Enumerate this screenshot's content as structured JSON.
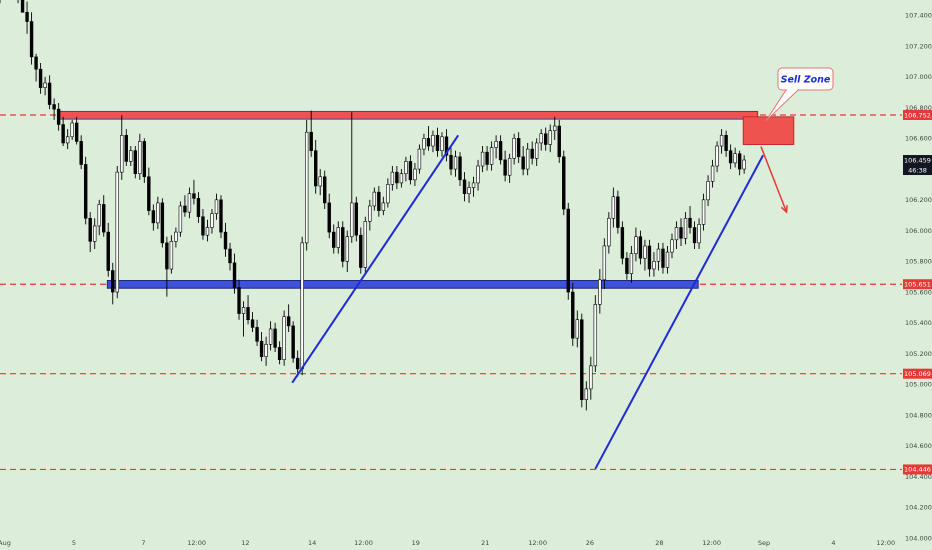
{
  "chart_data": {
    "type": "candlestick",
    "instrument_scale": "price",
    "ylim": [
      104.0,
      107.5
    ],
    "xlim": [
      0,
      100
    ],
    "y_ticks": [
      "107.400",
      "107.200",
      "107.000",
      "106.800",
      "106.600",
      "106.400",
      "106.200",
      "106.000",
      "105.800",
      "105.600",
      "105.400",
      "105.200",
      "105.000",
      "104.800",
      "104.600",
      "104.400",
      "104.200",
      "104.000"
    ],
    "x_ticks": [
      {
        "label": "Aug",
        "x": 0.5
      },
      {
        "label": "5",
        "x": 8.2
      },
      {
        "label": "7",
        "x": 15.9
      },
      {
        "label": "12:00",
        "x": 21.8
      },
      {
        "label": "12",
        "x": 27.2
      },
      {
        "label": "14",
        "x": 34.6
      },
      {
        "label": "12:00",
        "x": 40.3
      },
      {
        "label": "19",
        "x": 46.1
      },
      {
        "label": "21",
        "x": 53.8
      },
      {
        "label": "12:00",
        "x": 59.6
      },
      {
        "label": "26",
        "x": 65.4
      },
      {
        "label": "28",
        "x": 73.1
      },
      {
        "label": "12:00",
        "x": 78.9
      },
      {
        "label": "Sep",
        "x": 84.7
      },
      {
        "label": "4",
        "x": 92.4
      },
      {
        "label": "12:00",
        "x": 98.2
      }
    ],
    "price_tags": [
      {
        "label": "106.752",
        "value": 106.752,
        "style": "red"
      },
      {
        "label": "105.651",
        "value": 105.651,
        "style": "red"
      },
      {
        "label": "105.069",
        "value": 105.069,
        "style": "red"
      },
      {
        "label": "104.446",
        "value": 104.446,
        "style": "red"
      }
    ],
    "current_price": {
      "label": "106.459",
      "value": 106.459,
      "countdown": "46:38"
    },
    "horizontal_lines": [
      {
        "value": 106.752,
        "color": "#e53935",
        "style": "dashed"
      },
      {
        "value": 105.651,
        "color": "#e53935",
        "style": "dashed"
      },
      {
        "value": 105.069,
        "color": "#e53935",
        "style": "dashed"
      },
      {
        "value": 104.446,
        "color": "#e53935",
        "style": "dashed"
      }
    ],
    "zones": [
      {
        "name": "resistance",
        "x0": 6.4,
        "x1": 84.0,
        "y0": 106.725,
        "y1": 106.775,
        "fill": "#ef5350",
        "border": "#3340c9"
      },
      {
        "name": "support",
        "x0": 11.9,
        "x1": 77.4,
        "y0": 105.625,
        "y1": 105.675,
        "fill": "#3f51d8",
        "border": "#1a237e"
      }
    ],
    "trendlines": [
      {
        "x0": 32.4,
        "y0": 105.01,
        "x1": 50.8,
        "y1": 106.62,
        "color": "#1e2bd6"
      },
      {
        "x0": 66.0,
        "y0": 104.45,
        "x1": 84.6,
        "y1": 106.49,
        "color": "#1e2bd6"
      }
    ],
    "sell_zone": {
      "label": "Sell Zone",
      "box": {
        "x0": 82.4,
        "x1": 88.0,
        "y0": 106.56,
        "y1": 106.74
      },
      "arrow_to": {
        "x": 87.2,
        "y": 106.12
      }
    },
    "candles": [
      [
        0.0,
        107.72,
        107.96,
        107.48,
        107.9
      ],
      [
        0.5,
        107.9,
        107.99,
        107.66,
        107.76
      ],
      [
        1.0,
        107.76,
        107.91,
        107.67,
        107.73
      ],
      [
        1.5,
        107.73,
        107.84,
        107.52,
        107.55
      ],
      [
        2.0,
        107.55,
        107.6,
        107.48,
        107.51
      ],
      [
        2.5,
        107.51,
        107.55,
        107.42,
        107.42
      ],
      [
        3.0,
        107.42,
        107.49,
        107.28,
        107.36
      ],
      [
        3.5,
        107.36,
        107.42,
        107.08,
        107.13
      ],
      [
        4.0,
        107.13,
        107.15,
        106.97,
        107.05
      ],
      [
        4.5,
        107.05,
        107.09,
        106.89,
        106.93
      ],
      [
        5.0,
        106.93,
        107.0,
        106.88,
        106.96
      ],
      [
        5.5,
        106.96,
        107.01,
        106.79,
        106.82
      ],
      [
        6.0,
        106.82,
        106.86,
        106.72,
        106.79
      ],
      [
        6.5,
        106.79,
        106.83,
        106.65,
        106.69
      ],
      [
        7.0,
        106.69,
        106.74,
        106.55,
        106.57
      ],
      [
        7.5,
        106.57,
        106.66,
        106.53,
        106.61
      ],
      [
        8.0,
        106.61,
        106.72,
        106.59,
        106.7
      ],
      [
        8.5,
        106.7,
        106.74,
        106.56,
        106.58
      ],
      [
        9.0,
        106.58,
        106.62,
        106.4,
        106.43
      ],
      [
        9.5,
        106.43,
        106.48,
        106.04,
        106.08
      ],
      [
        10.0,
        106.08,
        106.12,
        105.86,
        105.93
      ],
      [
        10.5,
        105.93,
        106.08,
        105.88,
        106.03
      ],
      [
        11.0,
        106.03,
        106.2,
        105.97,
        106.17
      ],
      [
        11.5,
        106.17,
        106.23,
        105.96,
        105.99
      ],
      [
        12.0,
        105.99,
        106.05,
        105.7,
        105.74
      ],
      [
        12.5,
        105.74,
        105.79,
        105.52,
        105.6
      ],
      [
        13.0,
        105.6,
        106.42,
        105.56,
        106.38
      ],
      [
        13.5,
        106.38,
        106.75,
        106.33,
        106.62
      ],
      [
        14.0,
        106.62,
        106.66,
        106.42,
        106.45
      ],
      [
        14.5,
        106.45,
        106.55,
        106.42,
        106.52
      ],
      [
        15.0,
        106.52,
        106.55,
        106.34,
        106.37
      ],
      [
        15.5,
        106.37,
        106.63,
        106.33,
        106.58
      ],
      [
        16.0,
        106.58,
        106.6,
        106.31,
        106.35
      ],
      [
        16.5,
        106.35,
        106.41,
        106.1,
        106.13
      ],
      [
        17.0,
        106.13,
        106.17,
        106.0,
        106.05
      ],
      [
        17.5,
        106.05,
        106.22,
        106.01,
        106.18
      ],
      [
        18.0,
        106.18,
        106.21,
        105.89,
        105.92
      ],
      [
        18.5,
        105.92,
        105.96,
        105.57,
        105.75
      ],
      [
        19.0,
        105.75,
        105.97,
        105.72,
        105.93
      ],
      [
        19.5,
        105.93,
        106.02,
        105.89,
        105.99
      ],
      [
        20.0,
        105.99,
        106.19,
        105.96,
        106.16
      ],
      [
        20.5,
        106.16,
        106.23,
        106.09,
        106.12
      ],
      [
        21.0,
        106.12,
        106.28,
        106.08,
        106.24
      ],
      [
        21.5,
        106.24,
        106.33,
        106.17,
        106.21
      ],
      [
        22.0,
        106.21,
        106.25,
        106.05,
        106.09
      ],
      [
        22.5,
        106.09,
        106.14,
        105.94,
        105.97
      ],
      [
        23.0,
        105.97,
        106.07,
        105.93,
        106.02
      ],
      [
        23.5,
        106.02,
        106.14,
        105.98,
        106.11
      ],
      [
        24.0,
        106.11,
        106.24,
        106.07,
        106.2
      ],
      [
        24.5,
        106.2,
        106.23,
        105.95,
        105.99
      ],
      [
        25.0,
        105.99,
        106.05,
        105.83,
        105.88
      ],
      [
        25.5,
        105.88,
        105.92,
        105.74,
        105.79
      ],
      [
        26.0,
        105.79,
        105.85,
        105.59,
        105.63
      ],
      [
        26.5,
        105.63,
        105.68,
        105.42,
        105.46
      ],
      [
        27.0,
        105.46,
        105.54,
        105.31,
        105.5
      ],
      [
        27.5,
        105.5,
        105.58,
        105.39,
        105.42
      ],
      [
        28.0,
        105.42,
        105.47,
        105.34,
        105.37
      ],
      [
        28.5,
        105.37,
        105.42,
        105.25,
        105.28
      ],
      [
        29.0,
        105.28,
        105.34,
        105.15,
        105.18
      ],
      [
        29.5,
        105.18,
        105.31,
        105.12,
        105.26
      ],
      [
        30.0,
        105.26,
        105.41,
        105.22,
        105.36
      ],
      [
        30.5,
        105.36,
        105.4,
        105.21,
        105.24
      ],
      [
        31.0,
        105.24,
        105.28,
        105.13,
        105.16
      ],
      [
        31.5,
        105.16,
        105.48,
        105.12,
        105.44
      ],
      [
        32.0,
        105.44,
        105.52,
        105.34,
        105.38
      ],
      [
        32.5,
        105.38,
        105.41,
        105.14,
        105.17
      ],
      [
        33.0,
        105.17,
        105.22,
        105.05,
        105.1
      ],
      [
        33.5,
        105.1,
        105.96,
        105.06,
        105.92
      ],
      [
        34.0,
        105.92,
        106.72,
        105.87,
        106.64
      ],
      [
        34.5,
        106.64,
        106.78,
        106.48,
        106.52
      ],
      [
        35.0,
        106.52,
        106.59,
        106.24,
        106.29
      ],
      [
        35.5,
        106.29,
        106.4,
        106.23,
        106.35
      ],
      [
        36.0,
        106.35,
        106.39,
        106.14,
        106.18
      ],
      [
        36.5,
        106.18,
        106.24,
        105.95,
        105.99
      ],
      [
        37.0,
        105.99,
        106.04,
        105.85,
        105.89
      ],
      [
        37.5,
        105.89,
        106.06,
        105.85,
        106.02
      ],
      [
        38.0,
        106.02,
        106.06,
        105.76,
        105.8
      ],
      [
        38.5,
        105.8,
        106.0,
        105.73,
        105.96
      ],
      [
        39.0,
        105.96,
        106.77,
        105.92,
        106.18
      ],
      [
        39.5,
        106.18,
        106.22,
        105.93,
        105.97
      ],
      [
        40.0,
        105.97,
        106.02,
        105.72,
        105.76
      ],
      [
        40.5,
        105.76,
        106.09,
        105.72,
        106.06
      ],
      [
        41.0,
        106.06,
        106.2,
        106.0,
        106.16
      ],
      [
        41.5,
        106.16,
        106.28,
        106.13,
        106.25
      ],
      [
        42.0,
        106.25,
        106.29,
        106.09,
        106.13
      ],
      [
        42.5,
        106.13,
        106.22,
        106.1,
        106.18
      ],
      [
        43.0,
        106.18,
        106.34,
        106.15,
        106.3
      ],
      [
        43.5,
        106.3,
        106.42,
        106.26,
        106.38
      ],
      [
        44.0,
        106.38,
        106.42,
        106.27,
        106.31
      ],
      [
        44.5,
        106.31,
        106.4,
        106.28,
        106.37
      ],
      [
        45.0,
        106.37,
        106.48,
        106.32,
        106.45
      ],
      [
        45.5,
        106.45,
        106.49,
        106.3,
        106.33
      ],
      [
        46.0,
        106.33,
        106.44,
        106.29,
        106.4
      ],
      [
        46.5,
        106.4,
        106.56,
        106.37,
        106.53
      ],
      [
        47.0,
        106.53,
        106.63,
        106.49,
        106.6
      ],
      [
        47.5,
        106.6,
        106.68,
        106.52,
        106.55
      ],
      [
        48.0,
        106.55,
        106.65,
        106.51,
        106.62
      ],
      [
        48.5,
        106.62,
        106.67,
        106.48,
        106.52
      ],
      [
        49.0,
        106.52,
        106.64,
        106.48,
        106.61
      ],
      [
        49.5,
        106.61,
        106.66,
        106.45,
        106.49
      ],
      [
        50.0,
        106.49,
        106.54,
        106.36,
        106.4
      ],
      [
        50.5,
        106.4,
        106.52,
        106.35,
        106.48
      ],
      [
        51.0,
        106.48,
        106.51,
        106.29,
        106.33
      ],
      [
        51.5,
        106.33,
        106.38,
        106.19,
        106.24
      ],
      [
        52.0,
        106.24,
        106.32,
        106.18,
        106.28
      ],
      [
        52.5,
        106.28,
        106.35,
        106.22,
        106.31
      ],
      [
        53.0,
        106.31,
        106.46,
        106.26,
        106.42
      ],
      [
        53.5,
        106.42,
        106.55,
        106.38,
        106.51
      ],
      [
        54.0,
        106.51,
        106.55,
        106.39,
        106.43
      ],
      [
        54.5,
        106.43,
        106.58,
        106.39,
        106.54
      ],
      [
        55.0,
        106.54,
        106.62,
        106.47,
        106.58
      ],
      [
        55.5,
        106.58,
        106.62,
        106.43,
        106.46
      ],
      [
        56.0,
        106.46,
        106.52,
        106.32,
        106.36
      ],
      [
        56.5,
        106.36,
        106.5,
        106.31,
        106.47
      ],
      [
        57.0,
        106.47,
        106.63,
        106.43,
        106.6
      ],
      [
        57.5,
        106.6,
        106.64,
        106.44,
        106.48
      ],
      [
        58.0,
        106.48,
        106.55,
        106.36,
        106.4
      ],
      [
        58.5,
        106.4,
        106.57,
        106.36,
        106.53
      ],
      [
        59.0,
        106.53,
        106.58,
        106.43,
        106.47
      ],
      [
        59.5,
        106.47,
        106.6,
        106.42,
        106.57
      ],
      [
        60.0,
        106.57,
        106.66,
        106.52,
        106.63
      ],
      [
        60.5,
        106.63,
        106.67,
        106.52,
        106.56
      ],
      [
        61.0,
        106.56,
        106.69,
        106.51,
        106.65
      ],
      [
        61.5,
        106.65,
        106.74,
        106.59,
        106.68
      ],
      [
        62.0,
        106.68,
        106.72,
        106.44,
        106.48
      ],
      [
        62.5,
        106.48,
        106.52,
        106.1,
        106.14
      ],
      [
        63.0,
        106.14,
        106.18,
        105.55,
        105.6
      ],
      [
        63.5,
        105.6,
        105.66,
        105.25,
        105.3
      ],
      [
        64.0,
        105.3,
        105.48,
        105.24,
        105.42
      ],
      [
        64.5,
        105.42,
        105.46,
        104.85,
        104.9
      ],
      [
        65.0,
        104.9,
        105.02,
        104.83,
        104.97
      ],
      [
        65.5,
        104.97,
        105.18,
        104.9,
        105.12
      ],
      [
        66.0,
        105.12,
        105.58,
        105.08,
        105.52
      ],
      [
        66.5,
        105.52,
        105.75,
        105.46,
        105.68
      ],
      [
        67.0,
        105.68,
        105.95,
        105.62,
        105.9
      ],
      [
        67.5,
        105.9,
        106.12,
        105.85,
        106.08
      ],
      [
        68.0,
        106.08,
        106.28,
        106.02,
        106.22
      ],
      [
        68.5,
        106.22,
        106.26,
        105.98,
        106.02
      ],
      [
        69.0,
        106.02,
        106.06,
        105.78,
        105.82
      ],
      [
        69.5,
        105.82,
        105.86,
        105.68,
        105.72
      ],
      [
        70.0,
        105.72,
        105.9,
        105.66,
        105.85
      ],
      [
        70.5,
        105.85,
        106.02,
        105.8,
        105.96
      ],
      [
        71.0,
        105.96,
        106.0,
        105.78,
        105.82
      ],
      [
        71.5,
        105.82,
        105.94,
        105.74,
        105.9
      ],
      [
        72.0,
        105.9,
        105.94,
        105.7,
        105.75
      ],
      [
        72.5,
        105.75,
        105.86,
        105.7,
        105.8
      ],
      [
        73.0,
        105.8,
        105.92,
        105.74,
        105.88
      ],
      [
        73.5,
        105.88,
        105.92,
        105.72,
        105.76
      ],
      [
        74.0,
        105.76,
        105.9,
        105.72,
        105.86
      ],
      [
        74.5,
        105.86,
        105.98,
        105.82,
        105.94
      ],
      [
        75.0,
        105.94,
        106.06,
        105.88,
        106.02
      ],
      [
        75.5,
        106.02,
        106.08,
        105.9,
        105.95
      ],
      [
        76.0,
        105.95,
        106.12,
        105.91,
        106.08
      ],
      [
        76.5,
        106.08,
        106.16,
        105.98,
        106.02
      ],
      [
        77.0,
        106.02,
        106.06,
        105.88,
        105.92
      ],
      [
        77.5,
        105.92,
        106.08,
        105.88,
        106.04
      ],
      [
        78.0,
        106.04,
        106.24,
        106.0,
        106.2
      ],
      [
        78.5,
        106.2,
        106.36,
        106.16,
        106.32
      ],
      [
        79.0,
        106.32,
        106.46,
        106.28,
        106.42
      ],
      [
        79.5,
        106.42,
        106.58,
        106.38,
        106.55
      ],
      [
        80.0,
        106.55,
        106.66,
        106.5,
        106.62
      ],
      [
        80.5,
        106.62,
        106.65,
        106.48,
        106.52
      ],
      [
        81.0,
        106.52,
        106.56,
        106.4,
        106.44
      ],
      [
        81.5,
        106.44,
        106.54,
        106.41,
        106.5
      ],
      [
        82.0,
        106.5,
        106.52,
        106.36,
        106.4
      ],
      [
        82.5,
        106.4,
        106.49,
        106.37,
        106.459
      ]
    ]
  },
  "labels": {
    "sell_zone_text": "Sell Zone",
    "current_price_text": "106.459",
    "countdown_text": "46:38"
  },
  "colors": {
    "background": "#dcedda",
    "up_candle": "#ffffff",
    "down_candle": "#000000",
    "dashed_line": "#e53935",
    "trendline": "#1e2bd6",
    "resistance_zone": "#ef5350",
    "support_zone": "#3f51d8",
    "axis_text": "#3d4a40",
    "current_price_tag": "#131722"
  }
}
